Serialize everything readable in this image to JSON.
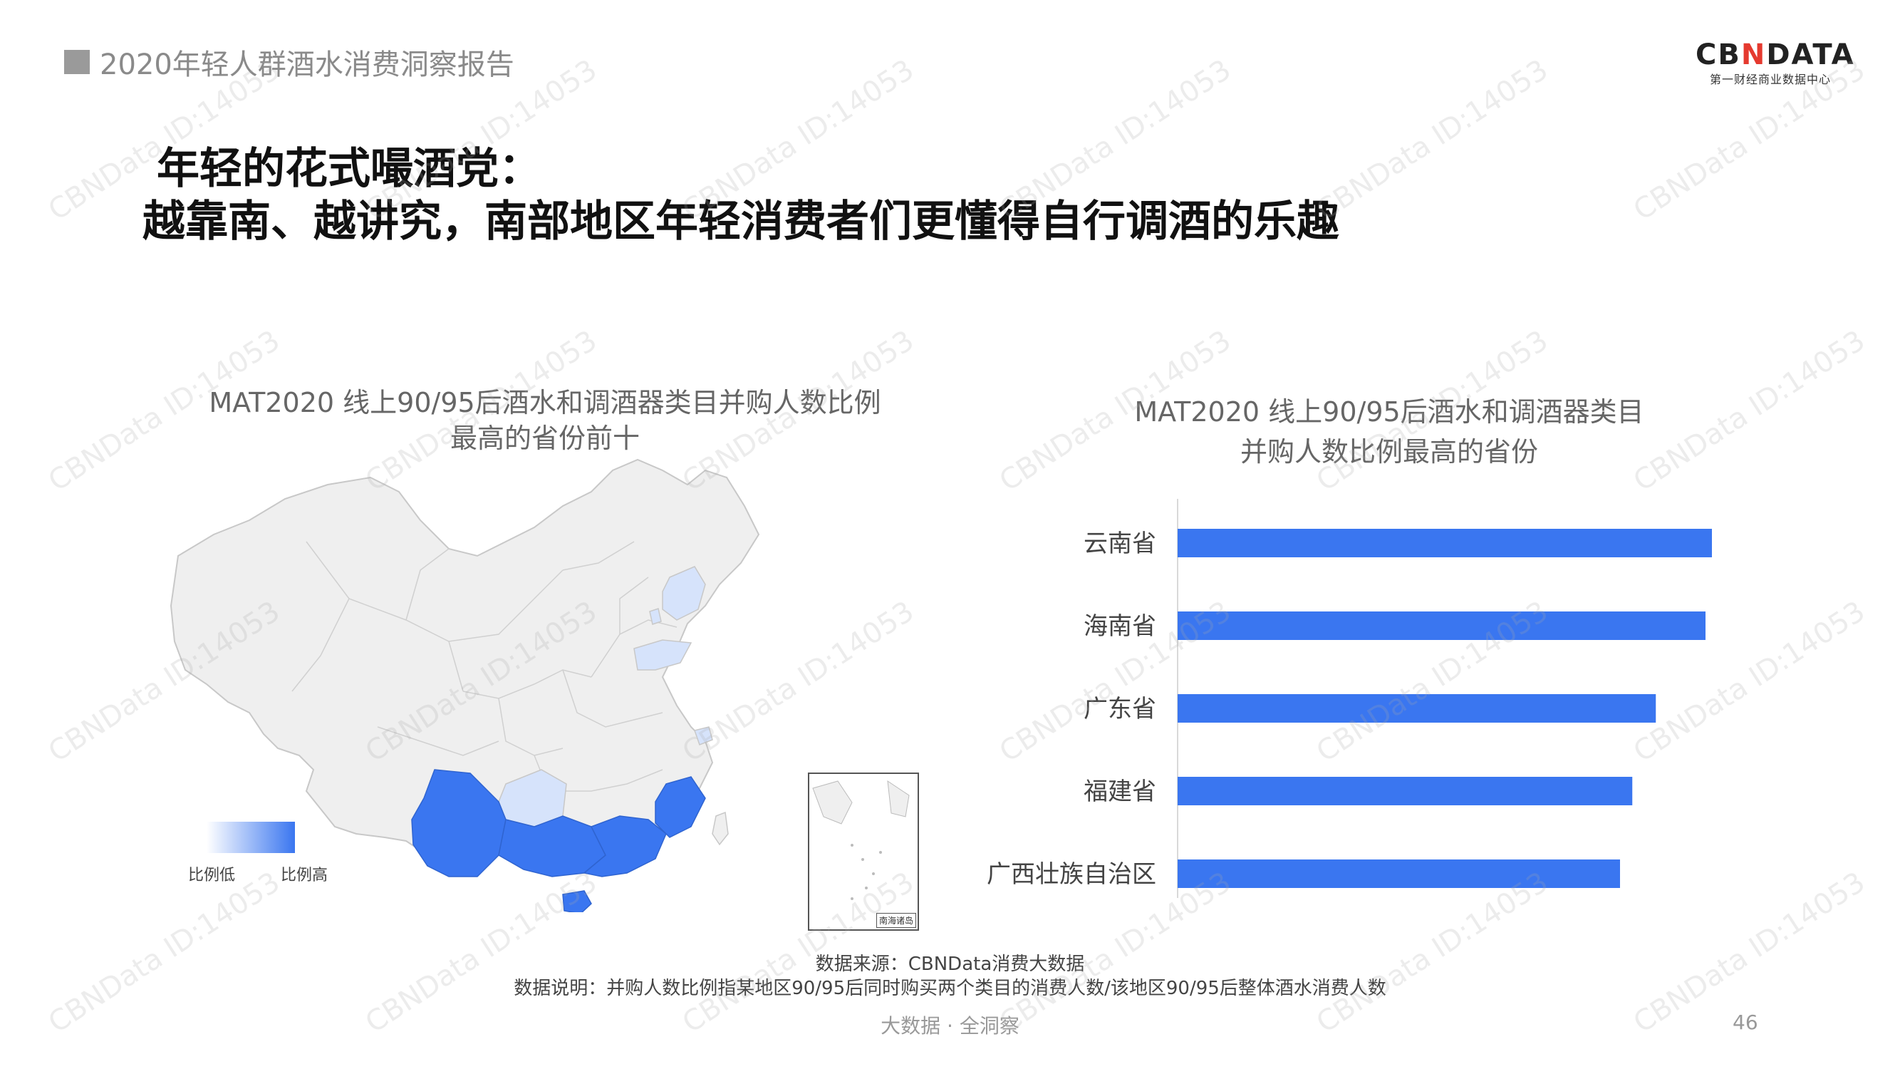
{
  "header": {
    "report_title": "2020年轻人群酒水消费洞察报告",
    "logo_text_left": "CB",
    "logo_text_mid": "N",
    "logo_text_right": "DATA",
    "logo_subtitle": "第一财经商业数据中心"
  },
  "headline": {
    "line1": "年轻的花式嘬酒党：",
    "line2": "越靠南、越讲究，南部地区年轻消费者们更懂得自行调酒的乐趣"
  },
  "map": {
    "title_line1": "MAT2020 线上90/95后酒水和调酒器类目并购人数比例",
    "title_line2": "最高的省份前十",
    "legend_low": "比例低",
    "legend_high": "比例高",
    "inset_label": "南海诸岛",
    "colors": {
      "low": "#d6e3fb",
      "high": "#3a76f0",
      "base": "#efefef"
    }
  },
  "chart_data": {
    "type": "bar",
    "orientation": "horizontal",
    "title": "MAT2020 线上90/95后酒水和调酒器类目并购人数比例最高的省份",
    "categories": [
      "云南省",
      "海南省",
      "广东省",
      "福建省",
      "广西壮族自治区"
    ],
    "values": [
      100,
      98.8,
      89.5,
      85.1,
      82.8
    ],
    "bar_color": "#3a76f0",
    "xlabel": "",
    "ylabel": "",
    "grid": false,
    "legend": "none"
  },
  "footer": {
    "source": "数据来源：CBNData消费大数据",
    "note": "数据说明：并购人数比例指某地区90/95后同时购买两个类目的消费人数/该地区90/95后整体酒水消费人数",
    "tagline": "大数据 · 全洞察",
    "page_number": "46"
  },
  "watermark": "CBNData ID:14053"
}
